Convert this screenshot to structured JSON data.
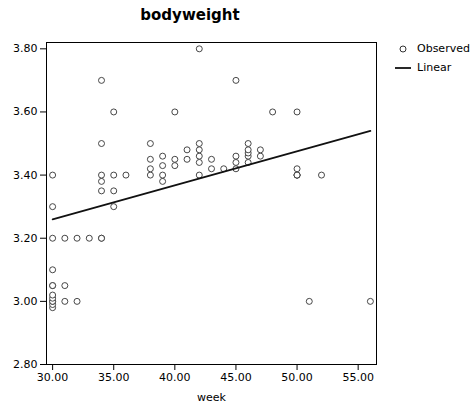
{
  "chart_data": {
    "type": "scatter",
    "title": "bodyweight",
    "xlabel": "week",
    "xlim": [
      29.5,
      56.5
    ],
    "ylim": [
      2.8,
      3.82
    ],
    "xticks": [
      {
        "value": 30,
        "label": "30.00"
      },
      {
        "value": 35,
        "label": "35.00"
      },
      {
        "value": 40,
        "label": "40.00"
      },
      {
        "value": 45,
        "label": "45.00"
      },
      {
        "value": 50,
        "label": "50.00"
      },
      {
        "value": 55,
        "label": "55.00"
      }
    ],
    "yticks": [
      {
        "value": 2.8,
        "label": "2.80"
      },
      {
        "value": 3.0,
        "label": "3.00"
      },
      {
        "value": 3.2,
        "label": "3.20"
      },
      {
        "value": 3.4,
        "label": "3.40"
      },
      {
        "value": 3.6,
        "label": "3.60"
      },
      {
        "value": 3.8,
        "label": "3.80"
      }
    ],
    "grid": false,
    "legend": "upper right",
    "series": [
      {
        "name": "Observed",
        "type": "scatter",
        "marker": "circle",
        "color": "#333333",
        "x": [
          30,
          30,
          30,
          30,
          30,
          30,
          30,
          30,
          30,
          30,
          30,
          30,
          31,
          31,
          31,
          32,
          32,
          33,
          34,
          34,
          34,
          34,
          34,
          34,
          34,
          35,
          35,
          35,
          35,
          36,
          38,
          38,
          38,
          38,
          39,
          39,
          39,
          39,
          40,
          40,
          40,
          41,
          41,
          42,
          42,
          42,
          42,
          42,
          42,
          43,
          43,
          44,
          45,
          45,
          45,
          45,
          46,
          46,
          46,
          46,
          46,
          47,
          47,
          48,
          50,
          50,
          50,
          50,
          50,
          51,
          52,
          56
        ],
        "values": [
          2.98,
          2.99,
          3.0,
          3.0,
          3.01,
          3.02,
          3.05,
          3.05,
          3.1,
          3.2,
          3.3,
          3.4,
          3.0,
          3.05,
          3.2,
          3.0,
          3.2,
          3.2,
          3.2,
          3.2,
          3.35,
          3.38,
          3.4,
          3.5,
          3.7,
          3.3,
          3.35,
          3.4,
          3.6,
          3.4,
          3.4,
          3.42,
          3.45,
          3.5,
          3.38,
          3.4,
          3.43,
          3.46,
          3.43,
          3.45,
          3.6,
          3.45,
          3.48,
          3.4,
          3.44,
          3.46,
          3.48,
          3.5,
          3.8,
          3.42,
          3.45,
          3.42,
          3.42,
          3.44,
          3.46,
          3.7,
          3.44,
          3.46,
          3.47,
          3.48,
          3.5,
          3.46,
          3.48,
          3.6,
          3.4,
          3.4,
          3.4,
          3.42,
          3.6,
          3.0,
          3.4,
          3.0
        ]
      },
      {
        "name": "Linear",
        "type": "line",
        "color": "#111111",
        "x": [
          30,
          56
        ],
        "values": [
          3.26,
          3.54
        ]
      }
    ]
  }
}
